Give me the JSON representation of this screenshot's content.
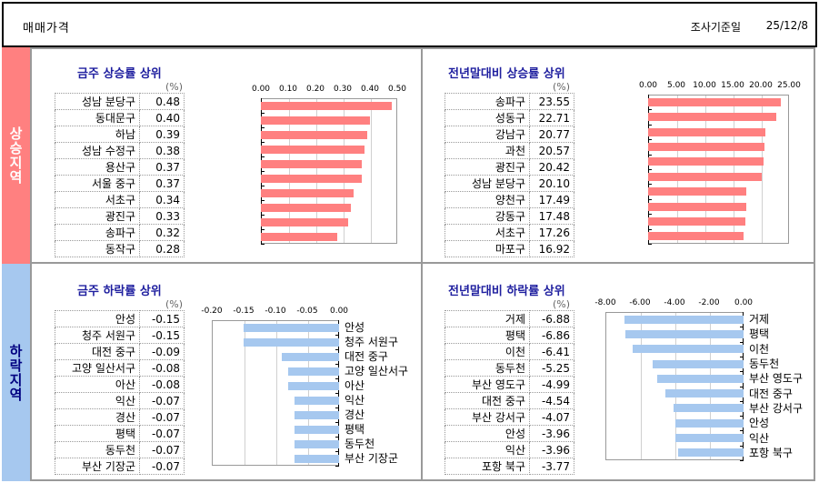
{
  "header": {
    "title": "매매가격",
    "date_label": "조사기준일",
    "date_value": "25/12/8"
  },
  "sections": {
    "rising": "상승지역",
    "falling": "하락지역"
  },
  "unit": "(%)",
  "panels": {
    "tl": {
      "title": "금주 상승률 상위",
      "rows": [
        [
          "성남 분당구",
          "0.48"
        ],
        [
          "동대문구",
          "0.40"
        ],
        [
          "하남",
          "0.39"
        ],
        [
          "성남 수정구",
          "0.38"
        ],
        [
          "용산구",
          "0.37"
        ],
        [
          "서울 중구",
          "0.37"
        ],
        [
          "서초구",
          "0.34"
        ],
        [
          "광진구",
          "0.33"
        ],
        [
          "송파구",
          "0.32"
        ],
        [
          "동작구",
          "0.28"
        ]
      ]
    },
    "tr": {
      "title": "전년말대비 상승률 상위",
      "rows": [
        [
          "송파구",
          "23.55"
        ],
        [
          "성동구",
          "22.71"
        ],
        [
          "강남구",
          "20.77"
        ],
        [
          "과천",
          "20.57"
        ],
        [
          "광진구",
          "20.42"
        ],
        [
          "성남 분당구",
          "20.10"
        ],
        [
          "양천구",
          "17.49"
        ],
        [
          "강동구",
          "17.48"
        ],
        [
          "서초구",
          "17.26"
        ],
        [
          "마포구",
          "16.92"
        ]
      ]
    },
    "bl": {
      "title": "금주 하락률 상위",
      "rows": [
        [
          "안성",
          "-0.15"
        ],
        [
          "청주 서원구",
          "-0.15"
        ],
        [
          "대전 중구",
          "-0.09"
        ],
        [
          "고양 일산서구",
          "-0.08"
        ],
        [
          "아산",
          "-0.08"
        ],
        [
          "익산",
          "-0.07"
        ],
        [
          "경산",
          "-0.07"
        ],
        [
          "평택",
          "-0.07"
        ],
        [
          "동두천",
          "-0.07"
        ],
        [
          "부산 기장군",
          "-0.07"
        ]
      ]
    },
    "br": {
      "title": "전년말대비 하락률 상위",
      "rows": [
        [
          "거제",
          "-6.88"
        ],
        [
          "평택",
          "-6.86"
        ],
        [
          "이천",
          "-6.41"
        ],
        [
          "동두천",
          "-5.25"
        ],
        [
          "부산 영도구",
          "-4.99"
        ],
        [
          "대전 중구",
          "-4.54"
        ],
        [
          "부산 강서구",
          "-4.07"
        ],
        [
          "안성",
          "-3.96"
        ],
        [
          "익산",
          "-3.96"
        ],
        [
          "포항 북구",
          "-3.77"
        ]
      ]
    }
  },
  "colors": {
    "rise": "#ff8080",
    "fall": "#a6c8ef",
    "title": "#1f1f9f"
  },
  "chart_data": [
    {
      "type": "bar",
      "orientation": "horizontal",
      "title": "금주 상승률 상위",
      "categories": [
        "성남 분당구",
        "동대문구",
        "하남",
        "성남 수정구",
        "용산구",
        "서울 중구",
        "서초구",
        "광진구",
        "송파구",
        "동작구"
      ],
      "values": [
        0.48,
        0.4,
        0.39,
        0.38,
        0.37,
        0.37,
        0.34,
        0.33,
        0.32,
        0.28
      ],
      "xlim": [
        0,
        0.5
      ],
      "ticks": [
        "0.00",
        "0.10",
        "0.20",
        "0.30",
        "0.40",
        "0.50"
      ],
      "unit": "%",
      "color": "#ff8080",
      "grid": true
    },
    {
      "type": "bar",
      "orientation": "horizontal",
      "title": "전년말대비 상승률 상위",
      "categories": [
        "송파구",
        "성동구",
        "강남구",
        "과천",
        "광진구",
        "성남 분당구",
        "양천구",
        "강동구",
        "서초구",
        "마포구"
      ],
      "values": [
        23.55,
        22.71,
        20.77,
        20.57,
        20.42,
        20.1,
        17.49,
        17.48,
        17.26,
        16.92
      ],
      "xlim": [
        0,
        25
      ],
      "ticks": [
        "0.00",
        "5.00",
        "10.00",
        "15.00",
        "20.00",
        "25.00"
      ],
      "unit": "%",
      "color": "#ff8080",
      "grid": true
    },
    {
      "type": "bar",
      "orientation": "horizontal",
      "title": "금주 하락률 상위",
      "categories": [
        "안성",
        "청주 서원구",
        "대전 중구",
        "고양 일산서구",
        "아산",
        "익산",
        "경산",
        "평택",
        "동두천",
        "부산 기장군"
      ],
      "values": [
        -0.15,
        -0.15,
        -0.09,
        -0.08,
        -0.08,
        -0.07,
        -0.07,
        -0.07,
        -0.07,
        -0.07
      ],
      "xlim": [
        -0.2,
        0
      ],
      "ticks": [
        "-0.20",
        "-0.15",
        "-0.10",
        "-0.05",
        "0.00"
      ],
      "unit": "%",
      "color": "#a6c8ef",
      "grid": true
    },
    {
      "type": "bar",
      "orientation": "horizontal",
      "title": "전년말대비 하락률 상위",
      "categories": [
        "거제",
        "평택",
        "이천",
        "동두천",
        "부산 영도구",
        "대전 중구",
        "부산 강서구",
        "안성",
        "익산",
        "포항 북구"
      ],
      "values": [
        -6.88,
        -6.86,
        -6.41,
        -5.25,
        -4.99,
        -4.54,
        -4.07,
        -3.96,
        -3.96,
        -3.77
      ],
      "xlim": [
        -8,
        0
      ],
      "ticks": [
        "-8.00",
        "-6.00",
        "-4.00",
        "-2.00",
        "0.00"
      ],
      "unit": "%",
      "color": "#a6c8ef",
      "grid": true
    }
  ]
}
